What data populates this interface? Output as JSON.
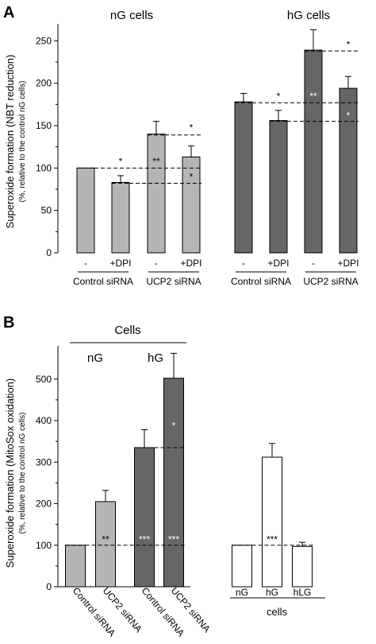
{
  "chart_data": [
    {
      "panel": "A",
      "type": "bar",
      "ylabel": "Superoxide formation (NBT reduction)",
      "ylabel_sub": "(%, relative to the control nG cells)",
      "ylim": [
        0,
        270
      ],
      "yticks": [
        0,
        50,
        100,
        150,
        200,
        250
      ],
      "group_titles": [
        "nG cells",
        "hG cells"
      ],
      "categories": [
        "-",
        "+DPI",
        "-",
        "+DPI",
        "-",
        "+DPI",
        "-",
        "+DPI"
      ],
      "subgroups": [
        "Control siRNA",
        "UCP2 siRNA",
        "Control siRNA",
        "UCP2 siRNA"
      ],
      "values": [
        100,
        83,
        140,
        113,
        178,
        156,
        239,
        194
      ],
      "errors": [
        0,
        8,
        15,
        13,
        10,
        12,
        24,
        14
      ],
      "colors": [
        "#b5b5b5",
        "#b5b5b5",
        "#b5b5b5",
        "#b5b5b5",
        "#666666",
        "#666666",
        "#666666",
        "#666666"
      ],
      "reference_lines": [
        {
          "from_bar": 0,
          "to_bar": 3,
          "y": 100
        },
        {
          "from_bar": 1,
          "to_bar": 3,
          "y": 82
        },
        {
          "from_bar": 2,
          "to_bar": 3,
          "y": 139
        },
        {
          "from_bar": 4,
          "to_bar": 7,
          "y": 177
        },
        {
          "from_bar": 5,
          "to_bar": 7,
          "y": 155
        },
        {
          "from_bar": 6,
          "to_bar": 7,
          "y": 238
        }
      ],
      "annotations": [
        {
          "text": "*",
          "bar": 1,
          "y": 104,
          "color": "#000000"
        },
        {
          "text": "*",
          "bar": 3,
          "y": 86,
          "color": "#000000"
        },
        {
          "text": "**",
          "bar": 2,
          "y": 104,
          "color": "#000000"
        },
        {
          "text": "*",
          "bar": 3,
          "y": 144,
          "color": "#000000"
        },
        {
          "text": "*",
          "bar": 5,
          "y": 181,
          "color": "#000000"
        },
        {
          "text": "**",
          "bar": 6,
          "y": 181,
          "color": "#ffffff"
        },
        {
          "text": "*",
          "bar": 7,
          "y": 158,
          "color": "#ffffff"
        },
        {
          "text": "*",
          "bar": 7,
          "y": 242,
          "color": "#000000"
        }
      ]
    },
    {
      "panel": "B",
      "type": "bar",
      "ylabel": "Superoxide formation (MitoSox oxidation)",
      "ylabel_sub": "(%, relative to the control nG cells)",
      "ylim": [
        0,
        580
      ],
      "yticks": [
        0,
        100,
        200,
        300,
        400,
        500
      ],
      "header": "Cells",
      "group_titles": [
        "nG",
        "hG"
      ],
      "categories": [
        "Control siRNA",
        "UCP2 siRNA",
        "Control siRNA",
        "UCP2 siRNA",
        "nG",
        "hG",
        "hLG"
      ],
      "second_group_label": "cells",
      "values": [
        100,
        205,
        335,
        502,
        100,
        312,
        97
      ],
      "errors": [
        0,
        27,
        43,
        60,
        0,
        33,
        10
      ],
      "colors": [
        "#b5b5b5",
        "#b5b5b5",
        "#666666",
        "#666666",
        "#ffffff",
        "#ffffff",
        "#ffffff"
      ],
      "reference_lines": [
        {
          "from_bar": 0,
          "to_bar": 3,
          "y": 100
        },
        {
          "from_bar": 2,
          "to_bar": 3,
          "y": 335
        },
        {
          "from_bar": 4,
          "to_bar": 6,
          "y": 100
        }
      ],
      "annotations": [
        {
          "text": "**",
          "bar": 1,
          "y": 106,
          "color": "#000000"
        },
        {
          "text": "***",
          "bar": 2,
          "y": 106,
          "color": "#ffffff"
        },
        {
          "text": "***",
          "bar": 3,
          "y": 106,
          "color": "#ffffff"
        },
        {
          "text": "*",
          "bar": 3,
          "y": 380,
          "color": "#ffffff"
        },
        {
          "text": "***",
          "bar": 5,
          "y": 106,
          "color": "#000000"
        }
      ]
    }
  ],
  "panel_labels": [
    "A",
    "B"
  ]
}
